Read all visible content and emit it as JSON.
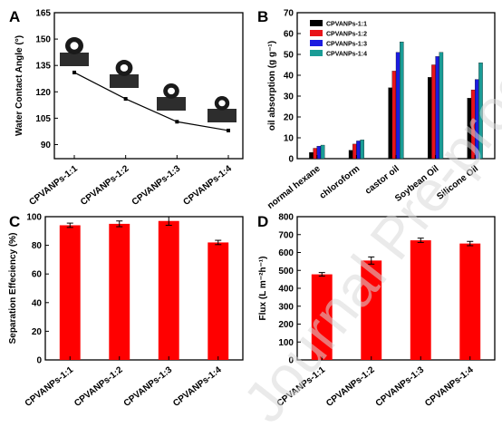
{
  "panels": [
    {
      "letter": "A",
      "chart_data": {
        "type": "line",
        "categories": [
          "CPVANPs-1:1",
          "CPVANPs-1:2",
          "CPVANPs-1:3",
          "CPVANPs-1:4"
        ],
        "series": [
          {
            "values": [
              131,
              116,
              103,
              98
            ]
          }
        ],
        "ylabel": "Water Contact Angle (°)",
        "ylim": [
          82,
          165
        ],
        "yticks": [
          90,
          105,
          120,
          135,
          150,
          165
        ],
        "grid": false,
        "droplet_images": 4,
        "colors": {
          "line": "#000000"
        }
      }
    },
    {
      "letter": "B",
      "chart_data": {
        "type": "bar",
        "categories": [
          "normal hexane",
          "chloroform",
          "castor oil",
          "Soybean Oil",
          "Silicone Oil"
        ],
        "series": [
          {
            "name": "CPVANPs-1:1",
            "color": "#000000",
            "values": [
              3,
              4,
              34,
              39,
              29
            ]
          },
          {
            "name": "CPVANPs-1:2",
            "color": "#e8141a",
            "values": [
              5,
              7,
              42,
              45,
              33
            ]
          },
          {
            "name": "CPVANPs-1:3",
            "color": "#1c1ce0",
            "values": [
              6,
              8.5,
              51,
              49,
              38
            ]
          },
          {
            "name": "CPVANPs-1:4",
            "color": "#1a9c96",
            "values": [
              6.5,
              9,
              56,
              51,
              46
            ]
          }
        ],
        "ylabel": "oil absorption (g g⁻¹)",
        "ylim": [
          0,
          70
        ],
        "yticks": [
          0,
          10,
          20,
          30,
          40,
          50,
          60,
          70
        ],
        "legend": "top-left",
        "grid": false
      }
    },
    {
      "letter": "C",
      "chart_data": {
        "type": "bar",
        "categories": [
          "CPVANPs-1:1",
          "CPVANPs-1:2",
          "CPVANPs-1:3",
          "CPVANPs-1:4"
        ],
        "values": [
          94,
          95,
          97,
          82
        ],
        "errors": [
          1.5,
          2,
          3,
          1.5
        ],
        "ylabel": "Separation Effeciency (%)",
        "ylim": [
          0,
          100
        ],
        "yticks": [
          0,
          20,
          40,
          60,
          80,
          100
        ],
        "colors": {
          "bar": "#ff0000"
        },
        "grid": false
      }
    },
    {
      "letter": "D",
      "chart_data": {
        "type": "bar",
        "categories": [
          "CPVANPs-1:1",
          "CPVANPs-1:2",
          "CPVANPs-1:3",
          "CPVANPs-1:4"
        ],
        "values": [
          478,
          555,
          668,
          650
        ],
        "errors": [
          10,
          20,
          12,
          12
        ],
        "ylabel": "Flux (L m⁻²h⁻¹)",
        "ylim": [
          0,
          800
        ],
        "yticks": [
          0,
          100,
          200,
          300,
          400,
          500,
          600,
          700,
          800
        ],
        "colors": {
          "bar": "#ff0000"
        },
        "grid": false
      }
    }
  ],
  "watermark": "Journal Pre-proof"
}
